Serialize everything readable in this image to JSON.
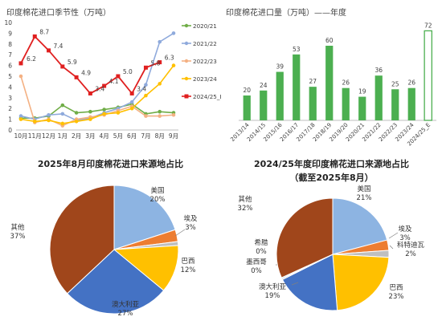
{
  "chart_data": [
    {
      "type": "line",
      "title": "印度棉花进口季节性（万吨）",
      "categories": [
        "10月",
        "11月",
        "12月",
        "1月",
        "2月",
        "3月",
        "4月",
        "5月",
        "6月",
        "7月",
        "8月",
        "9月"
      ],
      "ylim": [
        0,
        10
      ],
      "yticks": [
        0,
        1,
        2,
        3,
        4,
        5,
        6,
        7,
        8,
        9,
        10
      ],
      "legend_position": "right",
      "series": [
        {
          "name": "2020/21",
          "color": "#70ad47",
          "values": [
            1.1,
            1.1,
            1.3,
            2.3,
            1.6,
            1.7,
            1.9,
            2.1,
            2.4,
            1.5,
            1.7,
            1.6
          ]
        },
        {
          "name": "2021/22",
          "color": "#8faadc",
          "values": [
            1.3,
            1.0,
            1.4,
            1.5,
            0.9,
            1.1,
            1.6,
            2.0,
            2.6,
            4.2,
            8.2,
            9.0
          ]
        },
        {
          "name": "2022/23",
          "color": "#f4b183",
          "values": [
            5.0,
            0.7,
            1.0,
            0.4,
            1.0,
            1.2,
            1.4,
            1.8,
            2.2,
            1.3,
            1.3,
            1.4
          ]
        },
        {
          "name": "2023/24",
          "color": "#ffc000",
          "values": [
            1.0,
            0.8,
            0.9,
            0.6,
            0.8,
            1.0,
            1.5,
            1.6,
            2.0,
            3.2,
            4.3,
            6.0
          ]
        },
        {
          "name": "2024/25_E",
          "color": "#e02020",
          "values": [
            6.2,
            8.7,
            7.4,
            5.9,
            4.9,
            3.4,
            4.1,
            5.0,
            3.4,
            5.8,
            6.3,
            null
          ],
          "labels": [
            "6.2",
            "8.7",
            "7.4",
            "5.9",
            "4.9",
            "3.4",
            "4.1",
            "5.0",
            "3.4",
            "5.8",
            "6.3",
            ""
          ]
        }
      ]
    },
    {
      "type": "bar",
      "title": "印度棉花进口量（万吨）——年度",
      "categories": [
        "2013/14",
        "2014/15",
        "2015/16",
        "2016/17",
        "2017/18",
        "2018/19",
        "2019/20",
        "2020/21",
        "2021/22",
        "2022/23",
        "2023/24",
        "2024/25_E"
      ],
      "values": [
        20,
        24,
        39,
        53,
        27,
        60,
        26,
        19,
        36,
        25,
        26,
        72
      ],
      "ylim": [
        0,
        80
      ],
      "color": "#4caf50",
      "last_bar_style": "outlined"
    },
    {
      "type": "pie",
      "title": "2025年8月印度棉花进口来源地占比",
      "slices": [
        {
          "label": "美国",
          "value": 20,
          "display": "20%",
          "color": "#8db4e2"
        },
        {
          "label": "埃及",
          "value": 3,
          "display": "3%",
          "color": "#ed7d31"
        },
        {
          "label": "",
          "value": 1,
          "display": "",
          "color": "#bfbfbf"
        },
        {
          "label": "巴西",
          "value": 12,
          "display": "12%",
          "color": "#ffc000"
        },
        {
          "label": "澳大利亚",
          "value": 27,
          "display": "27%",
          "color": "#4472c4"
        },
        {
          "label": "其他",
          "value": 37,
          "display": "37%",
          "color": "#a0461b"
        }
      ]
    },
    {
      "type": "pie",
      "title": "2024/25年度印度棉花进口来源地占比",
      "subtitle": "（截至2025年8月）",
      "slices": [
        {
          "label": "美国",
          "value": 21,
          "display": "21%",
          "color": "#8db4e2"
        },
        {
          "label": "埃及",
          "value": 3,
          "display": "3%",
          "color": "#ed7d31"
        },
        {
          "label": "科特迪瓦",
          "value": 2,
          "display": "2%",
          "color": "#bfbfbf"
        },
        {
          "label": "巴西",
          "value": 23,
          "display": "23%",
          "color": "#ffc000"
        },
        {
          "label": "澳大利亚",
          "value": 19,
          "display": "19%",
          "color": "#4472c4"
        },
        {
          "label": "墨西哥",
          "value": 0.3,
          "display": "0%",
          "color": "#a5a5a5"
        },
        {
          "label": "希腊",
          "value": 0.3,
          "display": "0%",
          "color": "#5b9bd5"
        },
        {
          "label": "其他",
          "value": 32,
          "display": "32%",
          "color": "#a0461b"
        }
      ]
    }
  ]
}
